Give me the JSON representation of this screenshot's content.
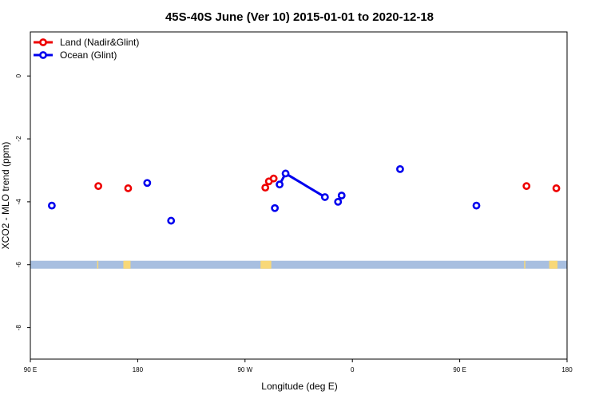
{
  "chart_data": {
    "type": "scatter",
    "title": "45S-40S June (Ver 10)   2015-01-01 to 2020-12-18",
    "xlabel": "Longitude (deg E)",
    "ylabel": "XCO2 - MLO trend (ppm)",
    "x_ticks": [
      {
        "value": 90,
        "label": "90 E"
      },
      {
        "value": 180,
        "label": "180"
      },
      {
        "value": 270,
        "label": "90 W"
      },
      {
        "value": 360,
        "label": "0"
      },
      {
        "value": 450,
        "label": "90 E"
      },
      {
        "value": 540,
        "label": "180"
      }
    ],
    "y_ticks": [
      {
        "value": 0,
        "label": "0"
      },
      {
        "value": -2,
        "label": "-2"
      },
      {
        "value": -4,
        "label": "-4"
      },
      {
        "value": -6,
        "label": "-6"
      },
      {
        "value": -8,
        "label": "-8"
      }
    ],
    "xlim": [
      90,
      540
    ],
    "ylim": [
      -9.0,
      1.4
    ],
    "legend_position": "top-left",
    "series": [
      {
        "name": "Land (Nadir&Glint)",
        "color": "#ee0000",
        "points": [
          {
            "x": 147,
            "y": -3.5
          },
          {
            "x": 172,
            "y": -3.57
          },
          {
            "x": 287,
            "y": -3.55
          },
          {
            "x": 290,
            "y": -3.35
          },
          {
            "x": 294,
            "y": -3.26
          },
          {
            "x": 506,
            "y": -3.5
          },
          {
            "x": 531,
            "y": -3.57
          }
        ],
        "connected": []
      },
      {
        "name": "Ocean (Glint)",
        "color": "#0000ee",
        "points": [
          {
            "x": 108,
            "y": -4.12
          },
          {
            "x": 188,
            "y": -3.4
          },
          {
            "x": 208,
            "y": -4.6
          },
          {
            "x": 295,
            "y": -4.2
          },
          {
            "x": 299,
            "y": -3.45
          },
          {
            "x": 304,
            "y": -3.1
          },
          {
            "x": 337,
            "y": -3.85
          },
          {
            "x": 348,
            "y": -4.0
          },
          {
            "x": 351,
            "y": -3.8
          },
          {
            "x": 400,
            "y": -2.96
          },
          {
            "x": 464,
            "y": -4.12
          }
        ],
        "connected": [
          [
            4,
            5,
            6
          ]
        ]
      }
    ],
    "land_mask": {
      "y": -6.0,
      "ocean_color": "#a8bfe0",
      "land_color": "#f8d878",
      "land_lon_ranges": [
        [
          146,
          147
        ],
        [
          168,
          174
        ],
        [
          283,
          292
        ],
        [
          504,
          505
        ],
        [
          525,
          532
        ]
      ]
    }
  }
}
